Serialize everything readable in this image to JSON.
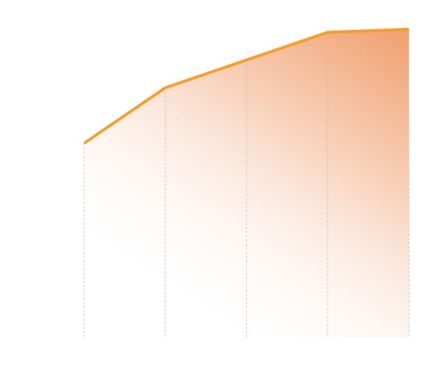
{
  "chart_data": {
    "type": "area",
    "categories": [
      null,
      null,
      null,
      null,
      null
    ],
    "values": [
      63,
      81,
      90,
      99,
      100
    ],
    "ylim": [
      0,
      100
    ],
    "color": "#f59a23",
    "area_color": "#ef9a66",
    "grid": true
  }
}
